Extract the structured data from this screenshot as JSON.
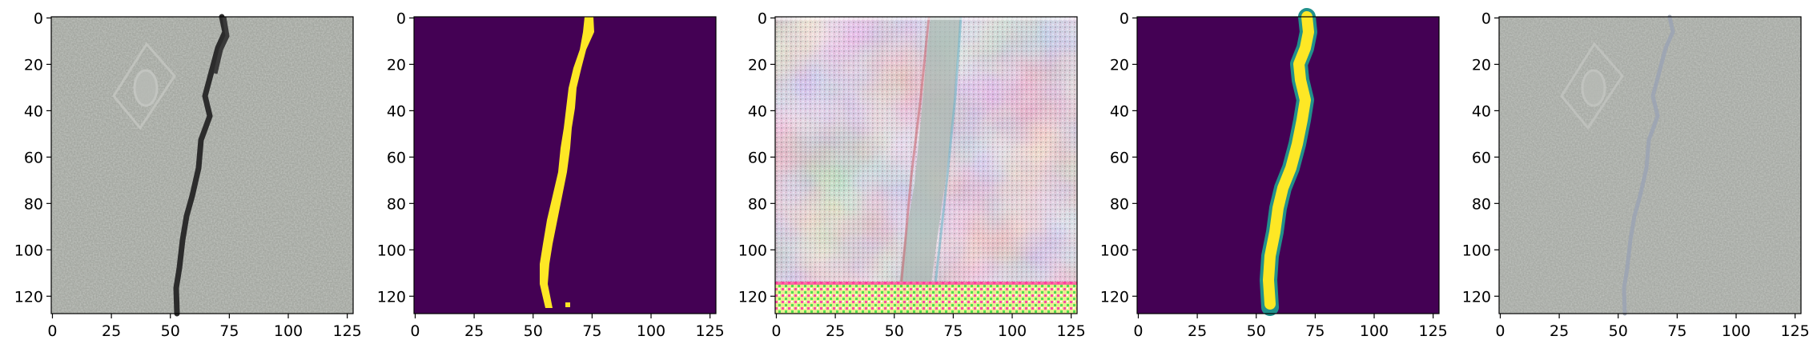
{
  "figure": {
    "panel_count": 5,
    "panels": [
      {
        "name": "input-concrete-photo",
        "kind": "rgb-photo",
        "description_colors": {
          "base": "#a4a7a1",
          "crack": "#2a2a2a"
        }
      },
      {
        "name": "ground-truth-mask",
        "kind": "binary-mask",
        "description_colors": {
          "background": "#440154",
          "foreground": "#fde725"
        }
      },
      {
        "name": "noisy-reconstruction",
        "kind": "rgb-artifact",
        "description_colors": {
          "base": "#d9c9cf",
          "dark": "#8f7e86"
        }
      },
      {
        "name": "predicted-mask",
        "kind": "soft-mask",
        "description_colors": {
          "background": "#440154",
          "edge": "#21918c",
          "foreground": "#fde725"
        }
      },
      {
        "name": "faded-reconstruction",
        "kind": "rgb-photo",
        "description_colors": {
          "base": "#a7aaa5",
          "crack": "#9ea3a8"
        }
      }
    ],
    "axes": {
      "x_ticks": [
        "0",
        "25",
        "50",
        "75",
        "100",
        "125"
      ],
      "y_ticks": [
        "0",
        "20",
        "40",
        "60",
        "80",
        "100",
        "120"
      ],
      "x_values": [
        0,
        25,
        50,
        75,
        100,
        125
      ],
      "y_values": [
        0,
        20,
        40,
        60,
        80,
        100,
        120
      ],
      "extent": [
        -0.5,
        127.5
      ]
    }
  }
}
